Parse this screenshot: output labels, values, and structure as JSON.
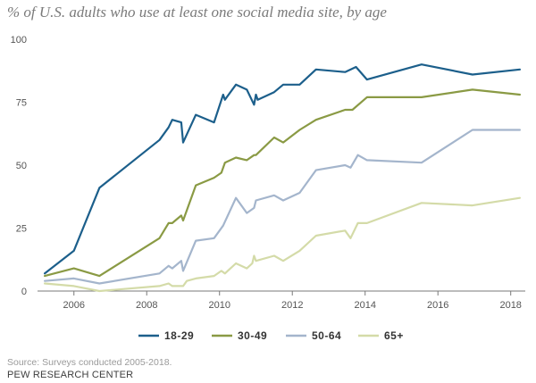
{
  "title": "% of U.S. adults who use at least one social media site, by age",
  "source": "Source: Surveys conducted 2005-2018.",
  "organization": "PEW RESEARCH CENTER",
  "chart_data": {
    "type": "line",
    "title": "% of U.S. adults who use at least one social media site, by age",
    "xlabel": "",
    "ylabel": "",
    "xlim": [
      2005,
      2018.4
    ],
    "ylim": [
      0,
      100
    ],
    "x_ticks": [
      2006,
      2008,
      2010,
      2012,
      2014,
      2016,
      2018
    ],
    "y_ticks": [
      0,
      25,
      50,
      75,
      100
    ],
    "grid": false,
    "legend_position": "bottom",
    "series": [
      {
        "name": "18-29",
        "color": "#1c5f8b",
        "points": [
          [
            2005.2,
            7
          ],
          [
            2006,
            16
          ],
          [
            2006.7,
            41
          ],
          [
            2008.35,
            60
          ],
          [
            2008.6,
            65
          ],
          [
            2008.7,
            68
          ],
          [
            2008.95,
            67
          ],
          [
            2009.0,
            59
          ],
          [
            2009.35,
            70
          ],
          [
            2009.85,
            67
          ],
          [
            2010.1,
            78
          ],
          [
            2010.15,
            76
          ],
          [
            2010.45,
            82
          ],
          [
            2010.75,
            80
          ],
          [
            2010.95,
            74
          ],
          [
            2011.0,
            78
          ],
          [
            2011.05,
            76
          ],
          [
            2011.5,
            79
          ],
          [
            2011.75,
            82
          ],
          [
            2012.2,
            82
          ],
          [
            2012.65,
            88
          ],
          [
            2013.45,
            87
          ],
          [
            2013.75,
            89
          ],
          [
            2014.05,
            84
          ],
          [
            2015.55,
            90
          ],
          [
            2016.95,
            86
          ],
          [
            2018.25,
            88
          ]
        ]
      },
      {
        "name": "30-49",
        "color": "#8a9a44",
        "points": [
          [
            2005.2,
            6
          ],
          [
            2006,
            9
          ],
          [
            2006.7,
            6
          ],
          [
            2008.35,
            21
          ],
          [
            2008.6,
            27
          ],
          [
            2008.7,
            27
          ],
          [
            2008.95,
            30
          ],
          [
            2009.0,
            28
          ],
          [
            2009.35,
            42
          ],
          [
            2009.85,
            45
          ],
          [
            2010.05,
            47
          ],
          [
            2010.15,
            51
          ],
          [
            2010.45,
            53
          ],
          [
            2010.75,
            52
          ],
          [
            2010.95,
            54
          ],
          [
            2011.0,
            54
          ],
          [
            2011.5,
            61
          ],
          [
            2011.75,
            59
          ],
          [
            2012.2,
            64
          ],
          [
            2012.65,
            68
          ],
          [
            2013.45,
            72
          ],
          [
            2013.65,
            72
          ],
          [
            2014.05,
            77
          ],
          [
            2015.55,
            77
          ],
          [
            2016.95,
            80
          ],
          [
            2018.25,
            78
          ]
        ]
      },
      {
        "name": "50-64",
        "color": "#a4b5cc",
        "points": [
          [
            2005.2,
            4
          ],
          [
            2006,
            5
          ],
          [
            2006.7,
            3
          ],
          [
            2008.35,
            7
          ],
          [
            2008.6,
            10
          ],
          [
            2008.7,
            9
          ],
          [
            2008.95,
            12
          ],
          [
            2009.0,
            8
          ],
          [
            2009.35,
            20
          ],
          [
            2009.85,
            21
          ],
          [
            2010.1,
            26
          ],
          [
            2010.45,
            37
          ],
          [
            2010.75,
            31
          ],
          [
            2010.95,
            33
          ],
          [
            2011.0,
            36
          ],
          [
            2011.5,
            38
          ],
          [
            2011.75,
            36
          ],
          [
            2012.2,
            39
          ],
          [
            2012.65,
            48
          ],
          [
            2013.45,
            50
          ],
          [
            2013.6,
            49
          ],
          [
            2013.8,
            54
          ],
          [
            2014.05,
            52
          ],
          [
            2015.55,
            51
          ],
          [
            2016.95,
            64
          ],
          [
            2018.25,
            64
          ]
        ]
      },
      {
        "name": "65+",
        "color": "#d4dba8",
        "points": [
          [
            2005.2,
            3
          ],
          [
            2006,
            2
          ],
          [
            2006.7,
            0
          ],
          [
            2008.35,
            2
          ],
          [
            2008.6,
            3
          ],
          [
            2008.7,
            2
          ],
          [
            2008.95,
            2
          ],
          [
            2009.0,
            2
          ],
          [
            2009.1,
            4
          ],
          [
            2009.35,
            5
          ],
          [
            2009.85,
            6
          ],
          [
            2010.05,
            8
          ],
          [
            2010.15,
            7
          ],
          [
            2010.45,
            11
          ],
          [
            2010.75,
            9
          ],
          [
            2010.9,
            11
          ],
          [
            2010.95,
            14
          ],
          [
            2011.0,
            12
          ],
          [
            2011.5,
            14
          ],
          [
            2011.75,
            12
          ],
          [
            2012.2,
            16
          ],
          [
            2012.65,
            22
          ],
          [
            2013.45,
            24
          ],
          [
            2013.6,
            21
          ],
          [
            2013.8,
            27
          ],
          [
            2014.05,
            27
          ],
          [
            2015.55,
            35
          ],
          [
            2016.95,
            34
          ],
          [
            2018.25,
            37
          ]
        ]
      }
    ]
  }
}
